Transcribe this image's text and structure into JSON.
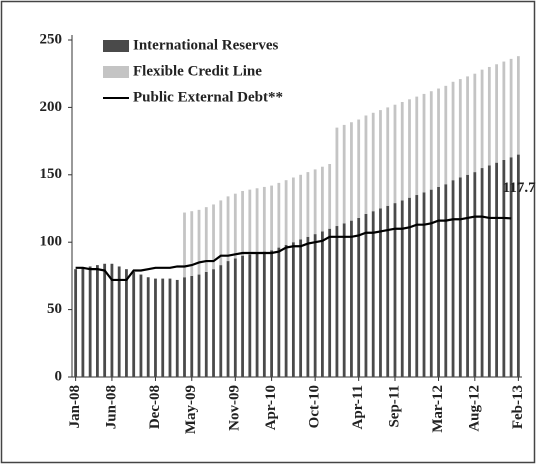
{
  "chart_data": {
    "type": "bar",
    "categories": [
      "Jan-08",
      null,
      null,
      null,
      null,
      "Jun-08",
      null,
      null,
      null,
      null,
      null,
      "Dec-08",
      null,
      null,
      null,
      null,
      "May-09",
      null,
      null,
      null,
      null,
      null,
      "Nov-09",
      null,
      null,
      null,
      null,
      "Apr-10",
      null,
      null,
      null,
      null,
      null,
      "Oct-10",
      null,
      null,
      null,
      null,
      null,
      "Apr-11",
      null,
      null,
      null,
      null,
      "Sep-11",
      null,
      null,
      null,
      null,
      null,
      "Mar-12",
      null,
      null,
      null,
      null,
      "Aug-12",
      null,
      null,
      null,
      null,
      null,
      "Feb-13"
    ],
    "stacked": true,
    "series": [
      {
        "name": "International Reserves",
        "color": "#4a4a4a",
        "values": [
          80,
          81,
          82,
          83,
          84,
          84,
          82,
          80,
          78,
          76,
          74,
          73,
          73,
          73,
          72,
          74,
          75,
          76,
          78,
          80,
          83,
          86,
          88,
          90,
          91,
          92,
          93,
          94,
          96,
          98,
          100,
          102,
          104,
          106,
          108,
          110,
          112,
          114,
          116,
          118,
          121,
          123,
          125,
          127,
          129,
          131,
          133,
          135,
          137,
          139,
          141,
          143,
          146,
          148,
          150,
          152,
          155,
          157,
          159,
          161,
          163,
          165
        ]
      },
      {
        "name": "Flexible Credit Line",
        "color": "#c4c4c4",
        "values": [
          null,
          null,
          null,
          null,
          null,
          null,
          null,
          null,
          null,
          null,
          null,
          null,
          null,
          null,
          null,
          48,
          48,
          48,
          48,
          48,
          48,
          48,
          48,
          48,
          48,
          48,
          48,
          48,
          48,
          48,
          48,
          48,
          48,
          48,
          48,
          48,
          73,
          73,
          73,
          73,
          73,
          73,
          73,
          73,
          73,
          73,
          73,
          73,
          73,
          73,
          73,
          73,
          73,
          73,
          73,
          73,
          73,
          73,
          73,
          73,
          73,
          73
        ]
      },
      {
        "name": "Public External Debt**",
        "type": "line",
        "color": "#000000",
        "values": [
          81,
          81,
          80,
          80,
          79,
          72,
          72,
          72,
          79,
          79,
          80,
          81,
          81,
          81,
          82,
          82,
          83,
          85,
          86,
          86,
          90,
          90,
          91,
          92,
          92,
          92,
          92,
          92,
          93,
          96,
          97,
          97,
          99,
          100,
          101,
          104,
          104,
          104,
          104,
          105,
          107,
          107,
          108,
          109,
          110,
          110,
          111,
          113,
          113,
          114,
          116,
          116,
          117,
          117,
          118,
          119,
          119,
          118,
          118,
          118,
          117.7,
          null
        ]
      }
    ],
    "ylim": [
      0,
      250
    ],
    "yticks": [
      0,
      50,
      100,
      150,
      200,
      250
    ]
  }
}
